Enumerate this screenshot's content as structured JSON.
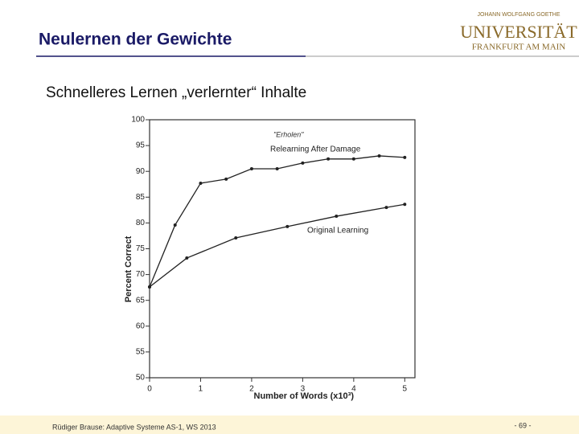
{
  "header": {
    "title": "Neulernen der Gewichte",
    "subtitle": "Schnelleres Lernen „verlernter“ Inhalte"
  },
  "logo": {
    "top": "JOHANN WOLFGANG GOETHE",
    "name": "UNIVERSITÄT",
    "city": "FRANKFURT AM MAIN"
  },
  "footer": {
    "author": "Rüdiger Brause: Adaptive Systeme AS-1, WS 2013",
    "page": "- 69 -"
  },
  "chart_data": {
    "type": "line",
    "xlabel": "Number of Words (x10³)",
    "ylabel": "Percent Correct",
    "annotation": "\"Erholen\"",
    "xlim": [
      0,
      5.2
    ],
    "ylim": [
      50,
      100
    ],
    "xticks": [
      0,
      1,
      2,
      3,
      4,
      5
    ],
    "yticks": [
      50,
      55,
      60,
      65,
      70,
      75,
      80,
      85,
      90,
      95,
      100
    ],
    "series": [
      {
        "name": "Relearning After Damage",
        "color": "#222222",
        "x": [
          0,
          0.5,
          1,
          1.5,
          2,
          2.5,
          3,
          3.5,
          4,
          4.5,
          5
        ],
        "values": [
          67.6,
          79.6,
          87.7,
          88.5,
          90.5,
          90.5,
          91.6,
          92.4,
          92.4,
          93.0,
          92.7
        ]
      },
      {
        "name": "Original Learning",
        "color": "#222222",
        "x": [
          0,
          0.73,
          1.69,
          2.7,
          3.66,
          4.64,
          5
        ],
        "values": [
          67.6,
          73.2,
          77.1,
          79.3,
          81.3,
          83.0,
          83.6
        ]
      }
    ]
  }
}
